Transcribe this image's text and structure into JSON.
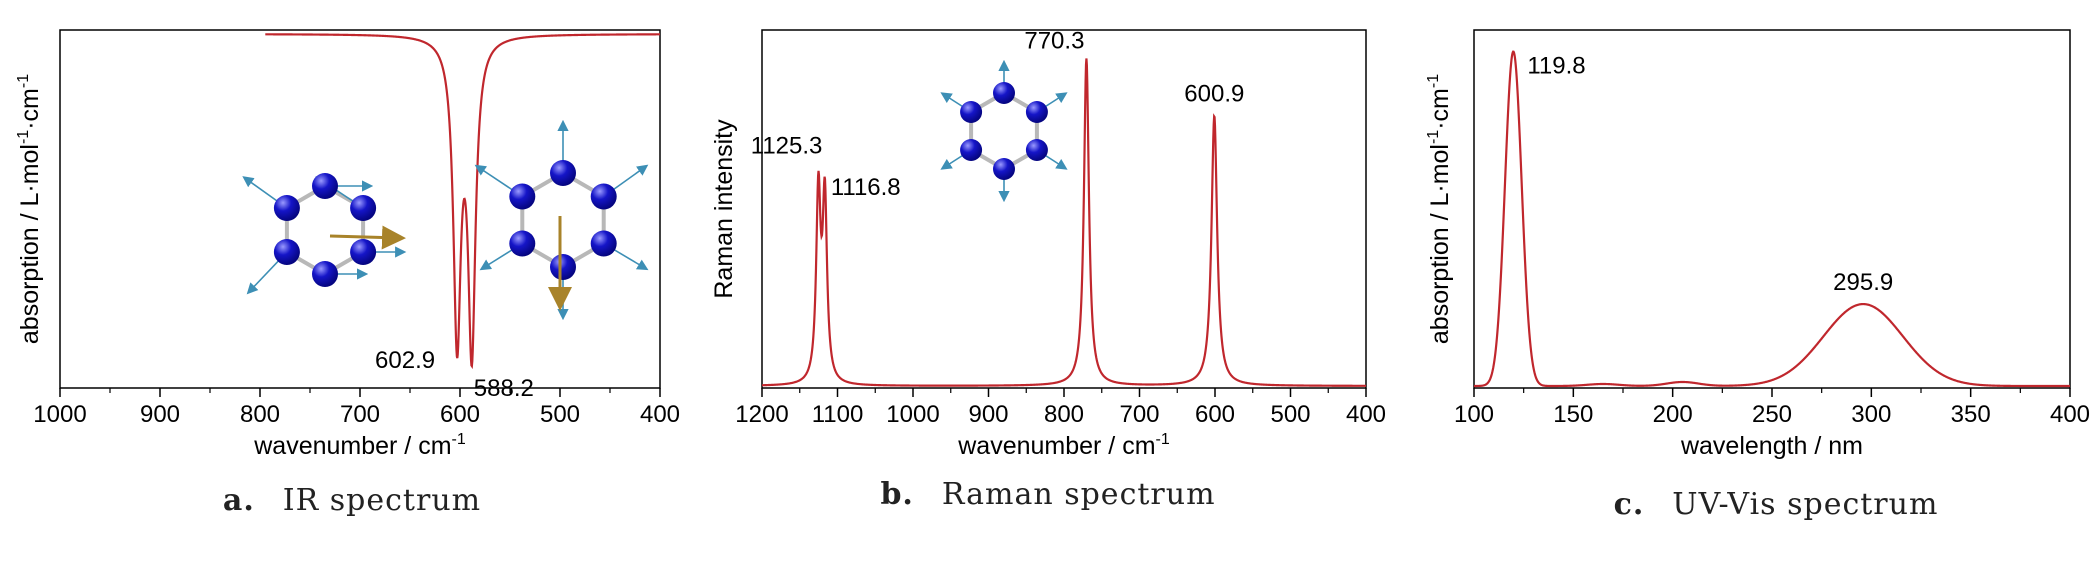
{
  "colors": {
    "curve": "#c0272d",
    "axis": "#000000",
    "atom": "#1515c8",
    "bond": "#b8b8b8",
    "vector": "#3d8fb5",
    "arrow": "#a8832a"
  },
  "chart_data": [
    {
      "type": "line",
      "caption_letter": "a.",
      "caption_text": "IR spectrum",
      "xlabel": "wavenumber / cm",
      "xlabel_sup": "-1",
      "ylabel": "absorption / L·mol",
      "ylabel_sup1": "-1",
      "ylabel_mid": "·cm",
      "ylabel_sup2": "-1",
      "xlim": [
        1000,
        400
      ],
      "x_reversed": true,
      "xticks": [
        1000,
        900,
        800,
        700,
        600,
        500,
        400
      ],
      "peaks": [
        {
          "x": 602.9,
          "height": 1.0,
          "width": 4.5,
          "label": "602.9"
        },
        {
          "x": 588.2,
          "height": 1.03,
          "width": 4.5,
          "label": "588.2"
        }
      ],
      "curve_start_x": 795,
      "direction": "down"
    },
    {
      "type": "line",
      "caption_letter": "b.",
      "caption_text": "Raman spectrum",
      "xlabel": "wavenumber / cm",
      "xlabel_sup": "-1",
      "ylabel": "Raman intensity",
      "xlim": [
        1200,
        400
      ],
      "x_reversed": true,
      "xticks": [
        1200,
        1100,
        1000,
        900,
        800,
        700,
        600,
        500,
        400
      ],
      "peaks": [
        {
          "x": 1125.3,
          "height": 0.575,
          "width": 3.5,
          "label": "1125.3"
        },
        {
          "x": 1116.8,
          "height": 0.555,
          "width": 3.5,
          "label": "1116.8"
        },
        {
          "x": 770.3,
          "height": 1.0,
          "width": 4,
          "label": "770.3"
        },
        {
          "x": 600.9,
          "height": 0.825,
          "width": 4.5,
          "label": "600.9"
        }
      ],
      "direction": "up"
    },
    {
      "type": "line",
      "caption_letter": "c.",
      "caption_text": "UV-Vis spectrum",
      "xlabel": "wavelength / nm",
      "ylabel": "absorption / L·mol",
      "ylabel_sup1": "-1",
      "ylabel_mid": "·cm",
      "ylabel_sup2": "-1",
      "xlim": [
        100,
        400
      ],
      "x_reversed": false,
      "xticks": [
        100,
        150,
        200,
        250,
        300,
        350,
        400
      ],
      "peaks": [
        {
          "x": 119.8,
          "height": 1.0,
          "sigma": 4.2,
          "label": "119.8"
        },
        {
          "x": 295.9,
          "height": 0.245,
          "sigma": 20,
          "label": "295.9"
        },
        {
          "x": 205,
          "height": 0.012,
          "sigma": 8,
          "label": ""
        },
        {
          "x": 165,
          "height": 0.006,
          "sigma": 8,
          "label": ""
        }
      ],
      "direction": "up"
    }
  ]
}
